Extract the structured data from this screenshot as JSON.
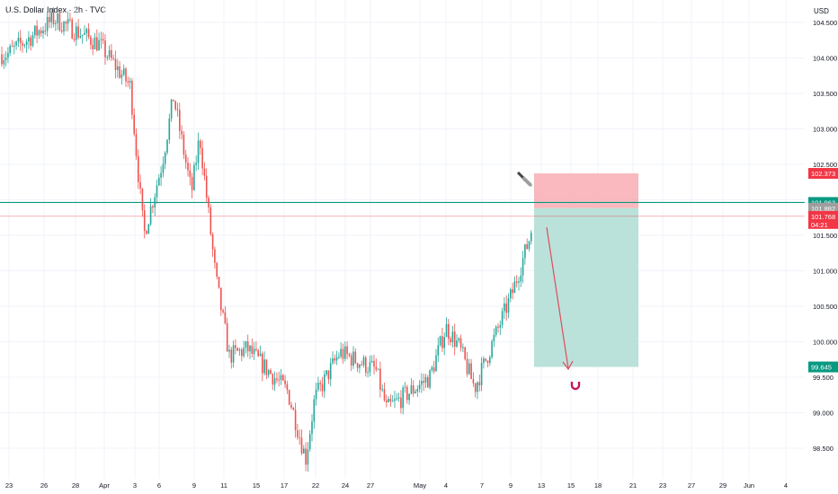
{
  "header": {
    "title": "U.S. Dollar Index · 2h · TVC",
    "currency": "USD"
  },
  "colors": {
    "up": "#26a69a",
    "down": "#ef5350",
    "grid": "#f0f3fa",
    "axis_text": "#131722",
    "horizontal_line": "#089981",
    "current_price_line": "#f23645",
    "risk_zone": "#f7a1a8",
    "reward_zone": "#b2dfd6",
    "projection_arrow": "#e04b5a",
    "magnet_icon": "#c2185b",
    "knife_icon": "#444444"
  },
  "chart_data": {
    "type": "candlestick",
    "symbol": "U.S. Dollar Index",
    "timeframe": "2h",
    "source": "TVC",
    "y_axis": {
      "ticks": [
        "104.500",
        "104.000",
        "103.500",
        "103.000",
        "102.500",
        "102.000",
        "101.500",
        "101.000",
        "100.500",
        "100.000",
        "99.500",
        "99.000",
        "98.500"
      ],
      "range": [
        98.2,
        104.9
      ]
    },
    "x_axis": {
      "ticks": [
        "23",
        "26",
        "28",
        "Apr",
        "3",
        "6",
        "9",
        "11",
        "15",
        "17",
        "22",
        "24",
        "27",
        "May",
        "4",
        "7",
        "9",
        "13",
        "15",
        "18",
        "21",
        "23",
        "27",
        "29",
        "Jun",
        "4"
      ]
    },
    "price_waypoints": [
      {
        "x": "23",
        "close": 104.05
      },
      {
        "x": "26",
        "close": 104.35
      },
      {
        "x": "28",
        "close": 104.55
      },
      {
        "x": "Apr",
        "close": 104.2
      },
      {
        "x": "3",
        "close": 103.6
      },
      {
        "x": "3",
        "close": 101.5
      },
      {
        "x": "6",
        "close": 102.5
      },
      {
        "x": "6",
        "close": 103.45
      },
      {
        "x": "9",
        "close": 102.1
      },
      {
        "x": "9",
        "close": 102.9
      },
      {
        "x": "11",
        "close": 100.9
      },
      {
        "x": "11",
        "close": 99.8
      },
      {
        "x": "15",
        "close": 99.9
      },
      {
        "x": "17",
        "close": 99.3
      },
      {
        "x": "22",
        "close": 98.35
      },
      {
        "x": "22",
        "close": 99.2
      },
      {
        "x": "24",
        "close": 99.85
      },
      {
        "x": "27",
        "close": 99.6
      },
      {
        "x": "27",
        "close": 99.05
      },
      {
        "x": "May",
        "close": 99.5
      },
      {
        "x": "May",
        "close": 100.2
      },
      {
        "x": "4",
        "close": 99.95
      },
      {
        "x": "7",
        "close": 99.35
      },
      {
        "x": "9",
        "close": 100.7
      },
      {
        "x": "9",
        "close": 101.5
      },
      {
        "x": "9",
        "close": 101.77
      }
    ],
    "horizontal_line": {
      "price": 101.963,
      "label": "101.963"
    },
    "current_price": {
      "price": 101.768,
      "label": "101.768",
      "countdown": "04:21"
    },
    "position": {
      "direction": "short",
      "entry": {
        "price": 101.882,
        "label": "101.882"
      },
      "stop": {
        "price": 102.373,
        "label": "102.373"
      },
      "target": {
        "price": 99.645,
        "label": "99.645"
      }
    },
    "annotations": [
      "projection-arrow",
      "knife-icon",
      "magnet-icon"
    ],
    "grid": true
  }
}
